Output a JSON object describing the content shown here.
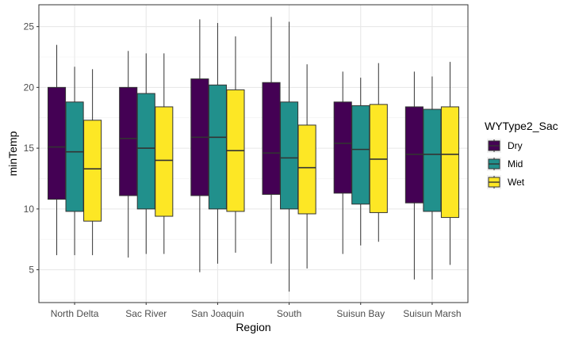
{
  "chart_data": {
    "type": "box",
    "xlabel": "Region",
    "ylabel": "minTemp",
    "ylim": [
      2.3,
      26.8
    ],
    "yticks": [
      5,
      10,
      15,
      20,
      25
    ],
    "grid": true,
    "categories": [
      "North Delta",
      "Sac River",
      "San Joaquin",
      "South",
      "Suisun Bay",
      "Suisun Marsh"
    ],
    "legend": {
      "title": "WYType2_Sac",
      "position": "right",
      "entries": [
        {
          "name": "Dry",
          "color": "#440154"
        },
        {
          "name": "Mid",
          "color": "#21908C"
        },
        {
          "name": "Wet",
          "color": "#FDE725"
        }
      ]
    },
    "series": [
      {
        "name": "Dry",
        "color": "#440154",
        "boxes": [
          {
            "min": 6.2,
            "q1": 10.8,
            "median": 15.1,
            "q3": 20.0,
            "max": 23.5
          },
          {
            "min": 6.0,
            "q1": 11.1,
            "median": 15.8,
            "q3": 20.0,
            "max": 23.0
          },
          {
            "min": 4.8,
            "q1": 11.1,
            "median": 15.9,
            "q3": 20.7,
            "max": 25.6
          },
          {
            "min": 5.5,
            "q1": 11.2,
            "median": 14.6,
            "q3": 20.4,
            "max": 25.8
          },
          {
            "min": 6.3,
            "q1": 11.3,
            "median": 15.4,
            "q3": 18.8,
            "max": 21.3
          },
          {
            "min": 4.2,
            "q1": 10.5,
            "median": 14.5,
            "q3": 18.4,
            "max": 21.3
          }
        ]
      },
      {
        "name": "Mid",
        "color": "#21908C",
        "boxes": [
          {
            "min": 6.2,
            "q1": 9.8,
            "median": 14.7,
            "q3": 18.8,
            "max": 21.7
          },
          {
            "min": 6.3,
            "q1": 10.0,
            "median": 15.0,
            "q3": 19.5,
            "max": 22.8
          },
          {
            "min": 5.5,
            "q1": 10.0,
            "median": 15.9,
            "q3": 20.2,
            "max": 25.3
          },
          {
            "min": 3.2,
            "q1": 10.0,
            "median": 14.2,
            "q3": 18.8,
            "max": 25.4
          },
          {
            "min": 7.0,
            "q1": 10.4,
            "median": 14.9,
            "q3": 18.5,
            "max": 20.8
          },
          {
            "min": 4.2,
            "q1": 9.8,
            "median": 14.5,
            "q3": 18.2,
            "max": 20.9
          }
        ]
      },
      {
        "name": "Wet",
        "color": "#FDE725",
        "boxes": [
          {
            "min": 6.2,
            "q1": 9.0,
            "median": 13.3,
            "q3": 17.3,
            "max": 21.5
          },
          {
            "min": 6.3,
            "q1": 9.4,
            "median": 14.0,
            "q3": 18.4,
            "max": 22.8
          },
          {
            "min": 6.4,
            "q1": 9.8,
            "median": 14.8,
            "q3": 19.8,
            "max": 24.2
          },
          {
            "min": 5.1,
            "q1": 9.6,
            "median": 13.4,
            "q3": 16.9,
            "max": 21.9
          },
          {
            "min": 7.3,
            "q1": 9.7,
            "median": 14.1,
            "q3": 18.6,
            "max": 22.0
          },
          {
            "min": 5.4,
            "q1": 9.3,
            "median": 14.5,
            "q3": 18.4,
            "max": 22.1
          }
        ]
      }
    ]
  }
}
